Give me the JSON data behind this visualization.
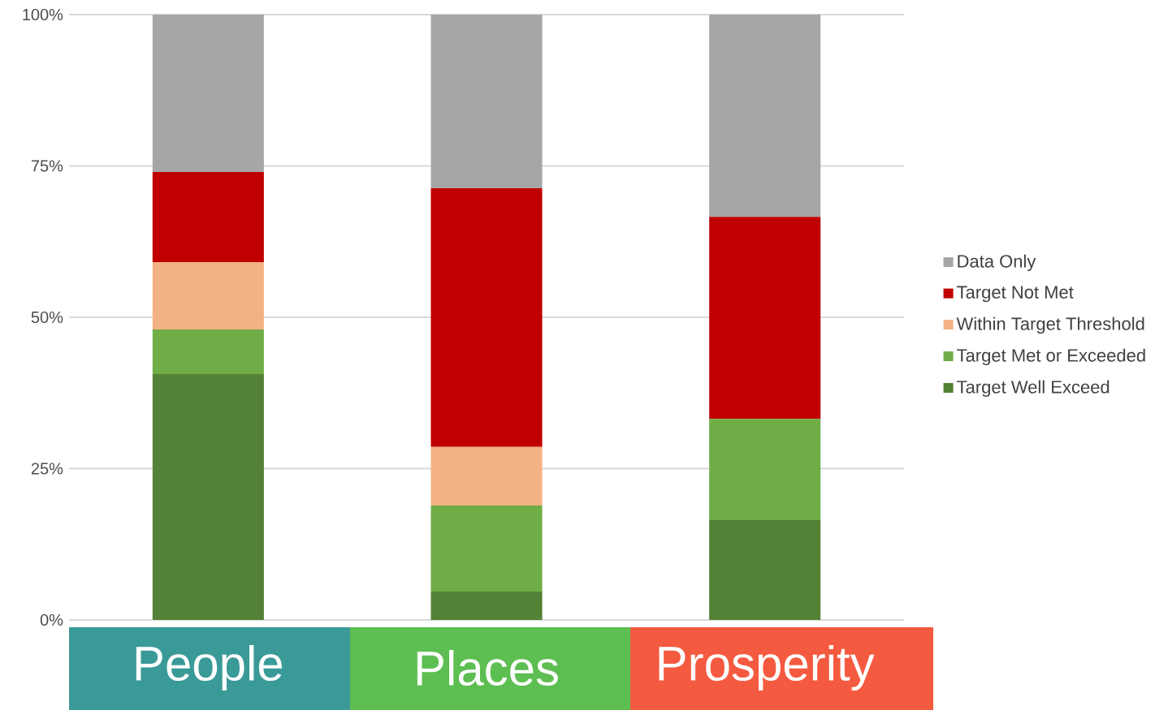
{
  "chart_data": {
    "type": "bar",
    "stacked": true,
    "categories": [
      "People",
      "Places",
      "Prosperity"
    ],
    "series": [
      {
        "name": "Target Well Exceed",
        "color": "#538135",
        "values": [
          40.6,
          4.7,
          16.5
        ]
      },
      {
        "name": "Target Met or Exceeded",
        "color": "#70ad47",
        "values": [
          7.4,
          14.2,
          16.7
        ]
      },
      {
        "name": "Within Target Threshold",
        "color": "#f4b183",
        "values": [
          11.1,
          9.7,
          0
        ]
      },
      {
        "name": "Target Not Met",
        "color": "#c00000",
        "values": [
          14.9,
          42.7,
          33.4
        ]
      },
      {
        "name": "Data Only",
        "color": "#a6a6a6",
        "values": [
          26.0,
          28.7,
          33.4
        ]
      }
    ],
    "ylim": [
      0,
      100
    ],
    "yticks": [
      {
        "value": 0,
        "label": "0%"
      },
      {
        "value": 25,
        "label": "25%"
      },
      {
        "value": 50,
        "label": "50%"
      },
      {
        "value": 75,
        "label": "75%"
      },
      {
        "value": 100,
        "label": "100%"
      }
    ],
    "grid": "y",
    "legend": "right"
  }
}
